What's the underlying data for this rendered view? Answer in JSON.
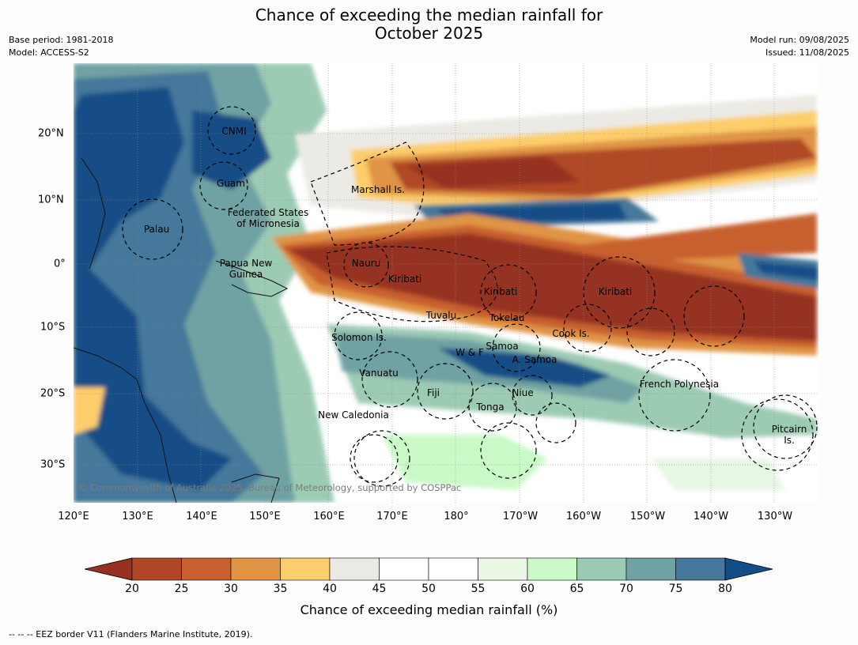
{
  "title": {
    "line1": "Chance of exceeding the median rainfall for",
    "line2": "October 2025"
  },
  "meta": {
    "base_period": "Base period: 1981-2018",
    "model": "Model: ACCESS-S2",
    "model_run": "Model run: 09/08/2025",
    "issued": "Issued: 11/08/2025"
  },
  "axes": {
    "lon_labels": [
      "120°E",
      "130°E",
      "140°E",
      "150°E",
      "160°E",
      "170°E",
      "180°",
      "170°W",
      "160°W",
      "150°W",
      "140°W",
      "130°W"
    ],
    "lat_labels": [
      "20°N",
      "10°N",
      "0°",
      "10°S",
      "20°S",
      "30°S"
    ]
  },
  "regions": [
    {
      "id": "cnmi",
      "label": "CNMI"
    },
    {
      "id": "guam",
      "label": "Guam"
    },
    {
      "id": "marshall",
      "label": "Marshall Is."
    },
    {
      "id": "fsm1",
      "label": "Federated States"
    },
    {
      "id": "fsm2",
      "label": "of Micronesia"
    },
    {
      "id": "palau",
      "label": "Palau"
    },
    {
      "id": "png1",
      "label": "Papua New"
    },
    {
      "id": "png2",
      "label": "Guinea"
    },
    {
      "id": "nauru",
      "label": "Nauru"
    },
    {
      "id": "kiribati1",
      "label": "Kiribati"
    },
    {
      "id": "kiribati2",
      "label": "Kiribati"
    },
    {
      "id": "kiribati3",
      "label": "Kiribati"
    },
    {
      "id": "tuvalu",
      "label": "Tuvalu"
    },
    {
      "id": "tokelau",
      "label": "Tokelau"
    },
    {
      "id": "cook",
      "label": "Cook Is."
    },
    {
      "id": "solomon",
      "label": "Solomon Is."
    },
    {
      "id": "samoa",
      "label": "Samoa"
    },
    {
      "id": "wf",
      "label": "W & F"
    },
    {
      "id": "asamoa",
      "label": "A. Samoa"
    },
    {
      "id": "vanuatu",
      "label": "Vanuatu"
    },
    {
      "id": "fiji",
      "label": "Fiji"
    },
    {
      "id": "niue",
      "label": "Niue"
    },
    {
      "id": "frpoly",
      "label": "French Polynesia"
    },
    {
      "id": "tonga",
      "label": "Tonga"
    },
    {
      "id": "newcal",
      "label": "New Caledonia"
    },
    {
      "id": "pitcairn1",
      "label": "Pitcairn"
    },
    {
      "id": "pitcairn2",
      "label": "Is."
    }
  ],
  "copyright": "© Commonwealth of Australia 2025, Bureau of Meteorology, supported by COSPPac",
  "colorbar": {
    "ticks": [
      "20",
      "25",
      "30",
      "35",
      "40",
      "45",
      "50",
      "55",
      "60",
      "65",
      "70",
      "75",
      "80"
    ],
    "colors": [
      "#963121",
      "#b04828",
      "#c8612f",
      "#e09444",
      "#fccd6a",
      "#eceae4",
      "#ffffff",
      "#ffffff",
      "#e8f6e4",
      "#c9fac8",
      "#9ccbb4",
      "#6fa2a3",
      "#45789a",
      "#134e86"
    ],
    "label": "Chance of exceeding median rainfall (%)"
  },
  "footnote": "--  --  -- EEZ border V11 (Flanders Marine Institute, 2019)."
}
